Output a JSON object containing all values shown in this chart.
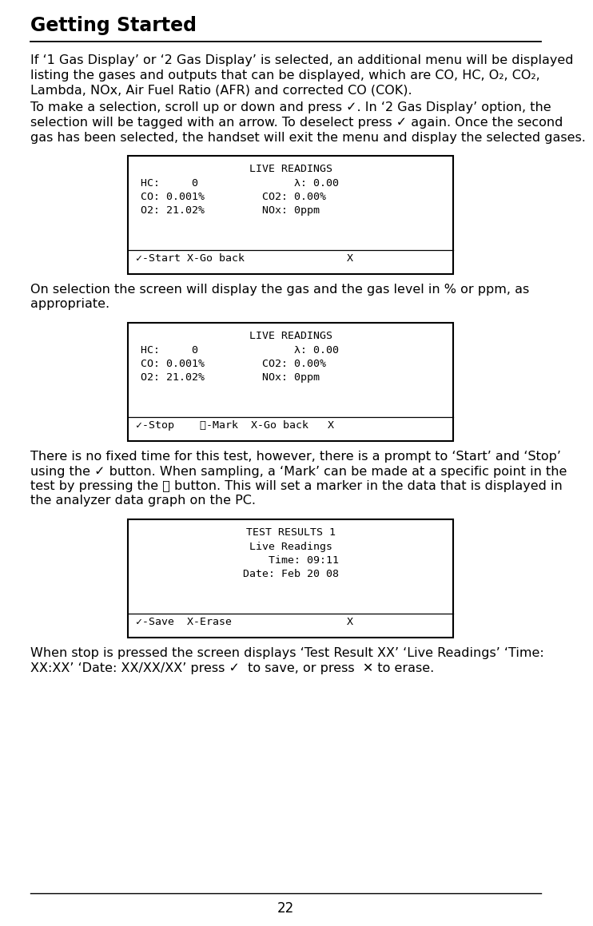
{
  "title": "Getting Started",
  "page_number": "22",
  "bg_color": "#ffffff",
  "text_color": "#000000",
  "paragraph1_lines": [
    "If ‘1 Gas Display’ or ‘2 Gas Display’ is selected, an additional menu will be displayed",
    "listing the gases and outputs that can be displayed, which are CO, HC, O₂, CO₂,",
    "Lambda, NOx, Air Fuel Ratio (AFR) and corrected CO (COK)."
  ],
  "paragraph2_lines": [
    "To make a selection, scroll up or down and press ✓. In ‘2 Gas Display’ option, the",
    "selection will be tagged with an arrow. To deselect press ✓ again. Once the second",
    "gas has been selected, the handset will exit the menu and display the selected gases."
  ],
  "screen1_title": "LIVE READINGS",
  "screen1_lines": [
    "HC:     0               λ: 0.00",
    "CO: 0.001%         CO2: 0.00%",
    "O2: 21.02%         NOx: 0ppm"
  ],
  "screen1_footer": "✓-Start X-Go back                X",
  "paragraph3_lines": [
    "On selection the screen will display the gas and the gas level in % or ppm, as",
    "appropriate."
  ],
  "screen2_title": "LIVE READINGS",
  "screen2_lines": [
    "HC:     0               λ: 0.00",
    "CO: 0.001%         CO2: 0.00%",
    "O2: 21.02%         NOx: 0ppm"
  ],
  "screen2_footer": "✓-Stop    Ⓜ-Mark  X-Go back   X",
  "paragraph4_lines": [
    "There is no fixed time for this test, however, there is a prompt to ‘Start’ and ‘Stop’",
    "using the ✓ button. When sampling, a ‘Mark’ can be made at a specific point in the",
    "test by pressing the Ⓜ button. This will set a marker in the data that is displayed in",
    "the analyzer data graph on the PC."
  ],
  "screen3_title": "TEST RESULTS 1",
  "screen3_lines": [
    "Live Readings",
    "    Time: 09:11",
    "Date: Feb 20 08"
  ],
  "screen3_footer": "✓-Save  X-Erase                  X",
  "paragraph5_lines": [
    "When stop is pressed the screen displays ‘Test Result XX’ ‘Live Readings’ ‘Time:",
    "XX:XX’ ‘Date: XX/XX/XX’ press ✓  to save, or press  ✕ to erase."
  ]
}
